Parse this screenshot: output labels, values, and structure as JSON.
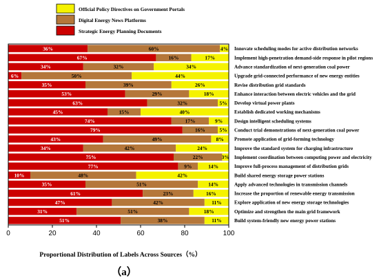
{
  "colors": {
    "official": "#f5f200",
    "news": "#b5773a",
    "planning": "#cc0000",
    "frame": "#000000"
  },
  "chart_data": {
    "type": "bar",
    "orientation": "horizontal",
    "stacked": true,
    "xlabel": "Proportional Distribution of Labels Across Sources（%）",
    "panel_label": "（a）",
    "xlim": [
      0,
      100
    ],
    "xticks": [
      "0",
      "20",
      "40",
      "60",
      "80",
      "100"
    ],
    "legend_placement": "top-left",
    "legend_order": [
      2,
      1,
      0
    ],
    "categories": [
      "Innovate scheduling modes for active distribution networks",
      "Implement high-penetration demand-side response in pilot regions",
      "Advance standardization of next-generation coal power",
      "Upgrade grid-connected performance of new energy entities",
      "Revise distribution grid standards",
      "Enhance interaction between electric vehicles and the grid",
      "Develop virtual power plants",
      "Establish dedicated working mechanisms",
      "Design intelligent scheduling systems",
      "Conduct trial demonstrations of next-generation coal power",
      "Promote application of grid-forming technology",
      "Improve the standard system for charging infrastructure",
      "Implement coordination between computing power and electricity",
      "Improve full-process management of distribution grids",
      "Build shared energy storage power stations",
      "Apply advanced technologies in transmission channels",
      "Increase the proportion of renewable energy transmission",
      "Explore application of new energy storage technologies",
      "Optimize and strengthen the main grid framework",
      "Build system-friendly new energy power stations"
    ],
    "series": [
      {
        "name": "Strategic Energy Planning Documents",
        "values": [
          36,
          67,
          34,
          6,
          35,
          53,
          63,
          45,
          74,
          79,
          43,
          34,
          75,
          77,
          10,
          35,
          61,
          47,
          31,
          51
        ],
        "labels": [
          "36%",
          "67%",
          "34%",
          "6%",
          "35%",
          "53%",
          "63%",
          "45%",
          "74%",
          "79%",
          "43%",
          "34%",
          "75%",
          "77%",
          "10%",
          "35%",
          "61%",
          "47%",
          "31%",
          "51%"
        ]
      },
      {
        "name": "Digital Energy News Platforms",
        "values": [
          60,
          16,
          32,
          50,
          39,
          29,
          32,
          15,
          17,
          16,
          49,
          42,
          22,
          9,
          48,
          51,
          23,
          42,
          51,
          38
        ],
        "labels": [
          "60%",
          "16%",
          "32%",
          "50%",
          "39%",
          "29%",
          "32%",
          "15%",
          "17%",
          "16%",
          "49%",
          "42%",
          "22%",
          "9%",
          "48%",
          "51%",
          "23%",
          "42%",
          "51%",
          "38%"
        ]
      },
      {
        "name": "Official Policy Directives on Government Portals",
        "values": [
          4,
          17,
          34,
          44,
          26,
          18,
          5,
          40,
          9,
          5,
          8,
          24,
          3,
          14,
          42,
          14,
          16,
          11,
          18,
          11
        ],
        "labels": [
          "4%",
          "17%",
          "34%",
          "44%",
          "26%",
          "18%",
          "5%",
          "40%",
          "9%",
          "5%",
          "8%",
          "24%",
          "3%",
          "14%",
          "42%",
          "14%",
          "16%",
          "11%",
          "18%",
          "11%"
        ]
      }
    ]
  }
}
